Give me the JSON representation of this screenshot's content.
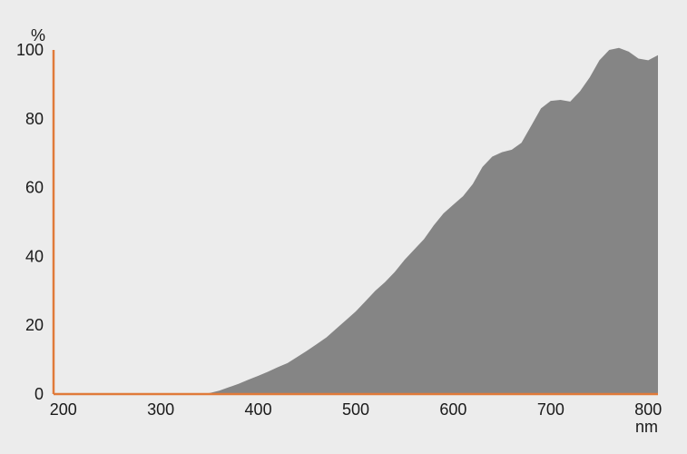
{
  "chart_data": {
    "type": "area",
    "y_unit": "%",
    "x_unit": "nm",
    "xlim": [
      190,
      810
    ],
    "ylim": [
      0,
      100
    ],
    "x_ticks": [
      "200",
      "300",
      "400",
      "500",
      "600",
      "700",
      "800"
    ],
    "y_ticks": [
      "0",
      "20",
      "40",
      "60",
      "80",
      "100"
    ],
    "colors": {
      "fill": "#858585",
      "axis": "#e07a3a",
      "background": "#ececec"
    },
    "x": [
      190,
      200,
      250,
      300,
      340,
      350,
      360,
      370,
      380,
      390,
      400,
      410,
      420,
      430,
      440,
      450,
      460,
      470,
      480,
      490,
      500,
      510,
      520,
      530,
      540,
      550,
      560,
      570,
      580,
      590,
      600,
      610,
      620,
      630,
      640,
      650,
      660,
      670,
      680,
      690,
      700,
      710,
      720,
      730,
      740,
      750,
      760,
      770,
      780,
      790,
      800,
      810
    ],
    "values": [
      0,
      0,
      0,
      0,
      0,
      0.3,
      1,
      2,
      3,
      4.2,
      5.3,
      6.5,
      7.8,
      9,
      10.8,
      12.6,
      14.5,
      16.5,
      19,
      21.5,
      24,
      27,
      30,
      32.5,
      35.5,
      39,
      42,
      45,
      49,
      52.5,
      55,
      57.5,
      61,
      66,
      69,
      70.3,
      71,
      73,
      78,
      83,
      85.2,
      85.5,
      85,
      88,
      92,
      97,
      100,
      100.6,
      99.5,
      97.5,
      97,
      98.5
    ]
  }
}
